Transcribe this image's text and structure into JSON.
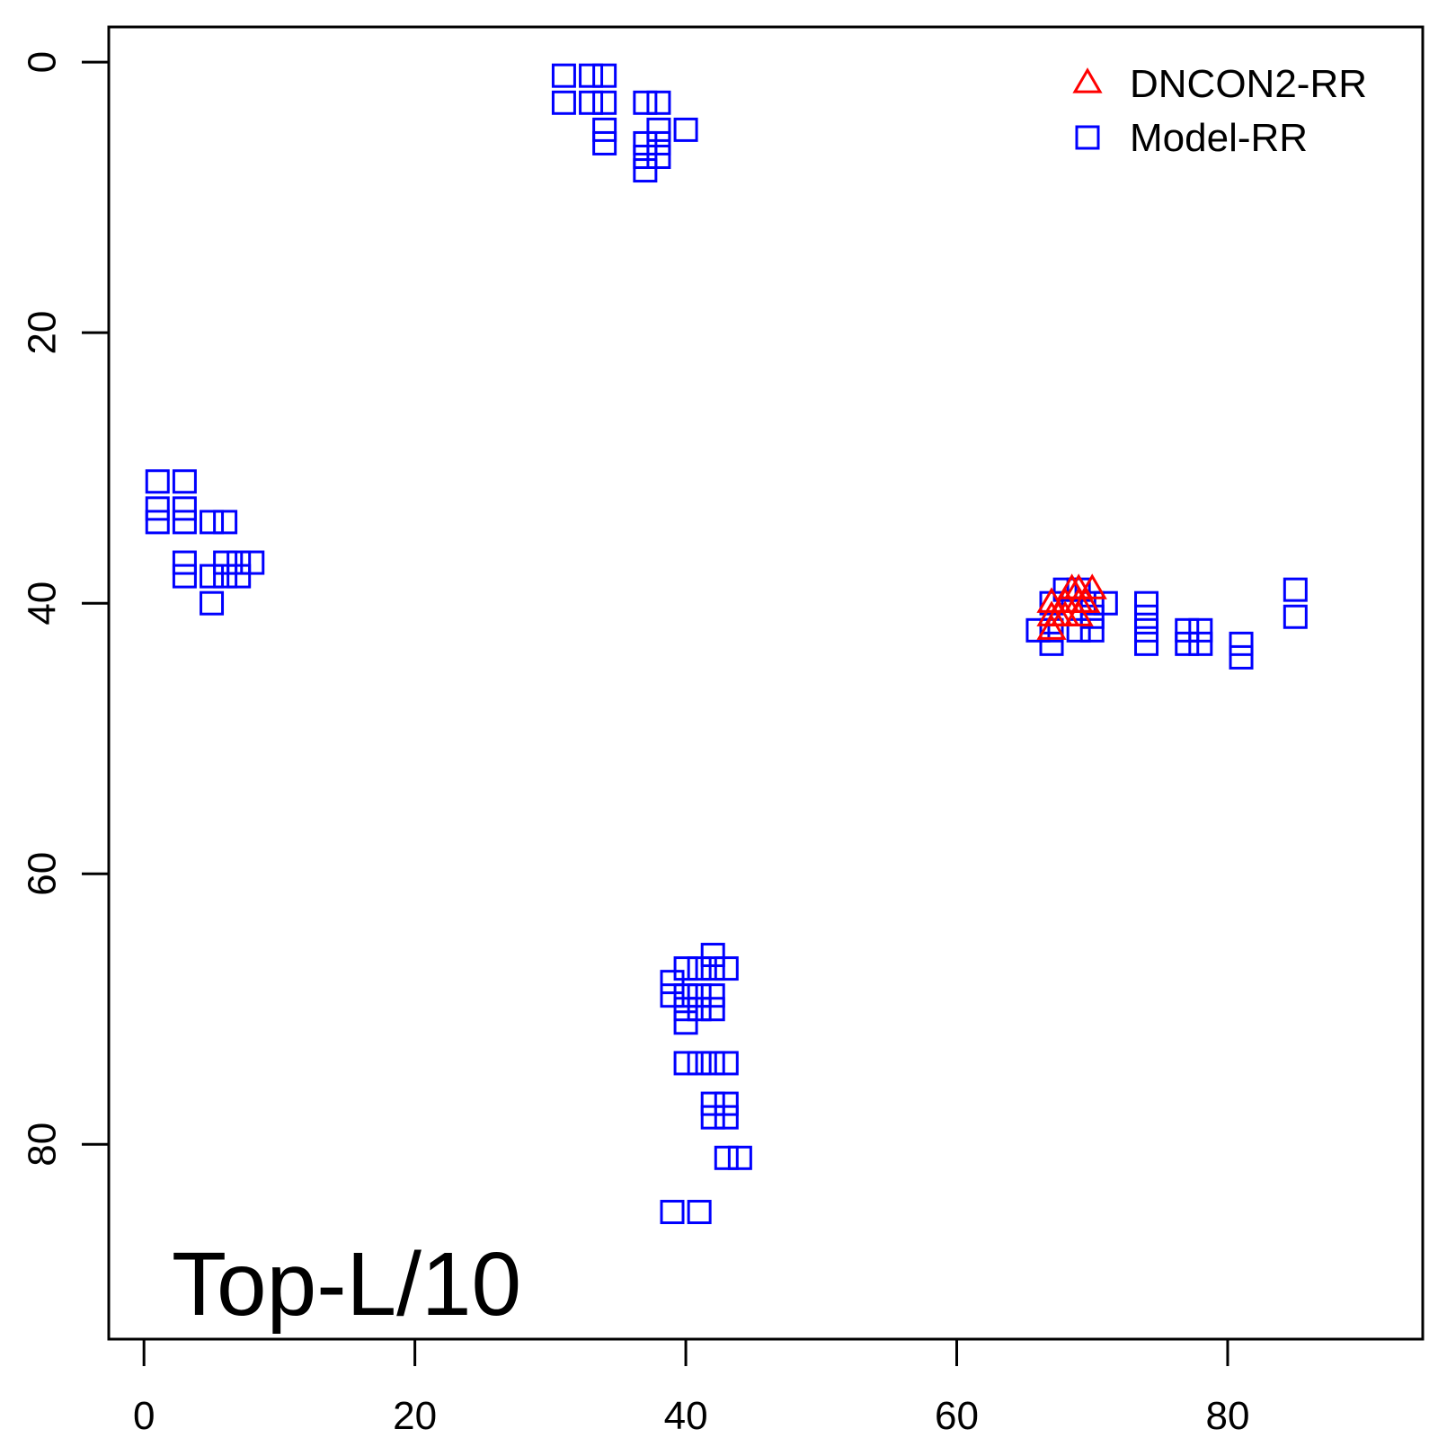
{
  "chart_data": {
    "type": "scatter",
    "title": "",
    "xlabel": "",
    "ylabel": "",
    "xlim": [
      -2.6,
      94.4
    ],
    "ylim": [
      -2.6,
      94.4
    ],
    "y_inverted": true,
    "grid": false,
    "legend_position": "top-right",
    "x_ticks": [
      0,
      20,
      40,
      60,
      80
    ],
    "y_ticks": [
      0,
      20,
      40,
      60,
      80
    ],
    "annotation": "Top-L/10",
    "series": [
      {
        "name": "DNCON2-RR",
        "marker": "triangle",
        "color": "#ff0000",
        "points": [
          [
            67,
            40
          ],
          [
            67,
            41
          ],
          [
            67,
            42
          ],
          [
            67.5,
            41
          ],
          [
            68,
            40
          ],
          [
            68,
            41
          ],
          [
            68.5,
            39
          ],
          [
            69,
            41
          ],
          [
            69,
            40
          ],
          [
            69,
            39
          ],
          [
            69.5,
            40
          ],
          [
            70,
            39
          ]
        ]
      },
      {
        "name": "Model-RR",
        "marker": "square",
        "color": "#0000ff",
        "points": [
          [
            1,
            31
          ],
          [
            1,
            33
          ],
          [
            1,
            34
          ],
          [
            3,
            31
          ],
          [
            3,
            33
          ],
          [
            3,
            34
          ],
          [
            3,
            37
          ],
          [
            3,
            38
          ],
          [
            5,
            34
          ],
          [
            6,
            34
          ],
          [
            5,
            38
          ],
          [
            6,
            38
          ],
          [
            6,
            37
          ],
          [
            7,
            37
          ],
          [
            8,
            37
          ],
          [
            7,
            38
          ],
          [
            5,
            40
          ],
          [
            31,
            1
          ],
          [
            31,
            3
          ],
          [
            33,
            1
          ],
          [
            33,
            3
          ],
          [
            34,
            1
          ],
          [
            34,
            3
          ],
          [
            34,
            5
          ],
          [
            34,
            6
          ],
          [
            37,
            3
          ],
          [
            38,
            3
          ],
          [
            37,
            6
          ],
          [
            37,
            7
          ],
          [
            37,
            8
          ],
          [
            38,
            5
          ],
          [
            38,
            6
          ],
          [
            38,
            7
          ],
          [
            40,
            5
          ],
          [
            67,
            40
          ],
          [
            68,
            39
          ],
          [
            69,
            39
          ],
          [
            70,
            40
          ],
          [
            71,
            40
          ],
          [
            66,
            42
          ],
          [
            67,
            42
          ],
          [
            67,
            43
          ],
          [
            69,
            42
          ],
          [
            70,
            42
          ],
          [
            70,
            41
          ],
          [
            74,
            40
          ],
          [
            74,
            41
          ],
          [
            74,
            42
          ],
          [
            74,
            43
          ],
          [
            77,
            42
          ],
          [
            77,
            43
          ],
          [
            78,
            42
          ],
          [
            78,
            43
          ],
          [
            81,
            43
          ],
          [
            81,
            44
          ],
          [
            85,
            39
          ],
          [
            85,
            41
          ],
          [
            39,
            68
          ],
          [
            39,
            69
          ],
          [
            40,
            67
          ],
          [
            41,
            67
          ],
          [
            42,
            66
          ],
          [
            42,
            67
          ],
          [
            43,
            67
          ],
          [
            40,
            69
          ],
          [
            40,
            70
          ],
          [
            40,
            71
          ],
          [
            41,
            69
          ],
          [
            42,
            69
          ],
          [
            41,
            70
          ],
          [
            42,
            70
          ],
          [
            40,
            74
          ],
          [
            41,
            74
          ],
          [
            42,
            74
          ],
          [
            43,
            74
          ],
          [
            42,
            77
          ],
          [
            43,
            77
          ],
          [
            42,
            78
          ],
          [
            43,
            78
          ],
          [
            43,
            81
          ],
          [
            44,
            81
          ],
          [
            39,
            85
          ],
          [
            41,
            85
          ]
        ]
      }
    ]
  }
}
